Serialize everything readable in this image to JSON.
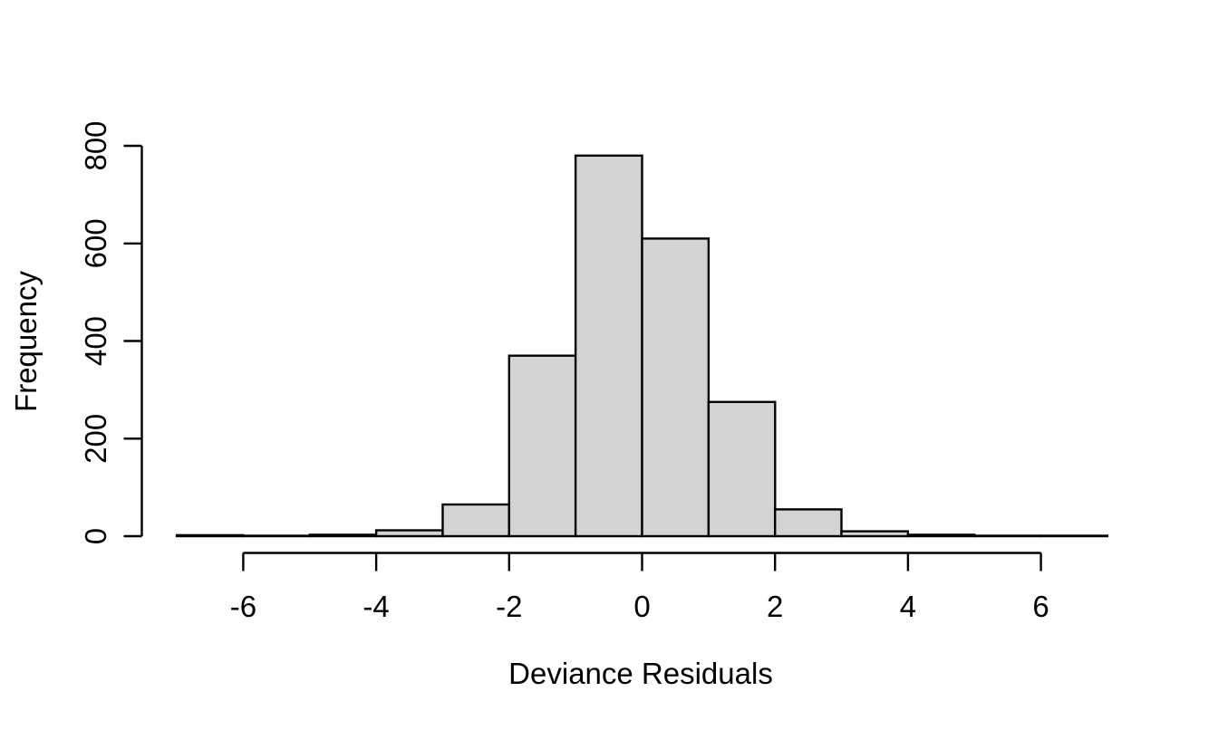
{
  "chart_data": {
    "type": "bar",
    "subtype": "histogram",
    "title": "",
    "xlabel": "Deviance Residuals",
    "ylabel": "Frequency",
    "bin_edges": [
      -7,
      -6,
      -5,
      -4,
      -3,
      -2,
      -1,
      0,
      1,
      2,
      3,
      4,
      5,
      6,
      7
    ],
    "counts": [
      2,
      1,
      3,
      12,
      65,
      370,
      780,
      610,
      275,
      55,
      10,
      3,
      1,
      1
    ],
    "x_ticks": [
      -6,
      -4,
      -2,
      0,
      2,
      4,
      6
    ],
    "y_ticks": [
      0,
      200,
      400,
      600,
      800
    ],
    "xlim": [
      -7,
      7
    ],
    "ylim": [
      0,
      800
    ],
    "grid": false,
    "legend_position": "none",
    "bar_fill": "#d3d3d3",
    "bar_stroke": "#000000",
    "axis_color": "#000000",
    "background": "#ffffff"
  }
}
